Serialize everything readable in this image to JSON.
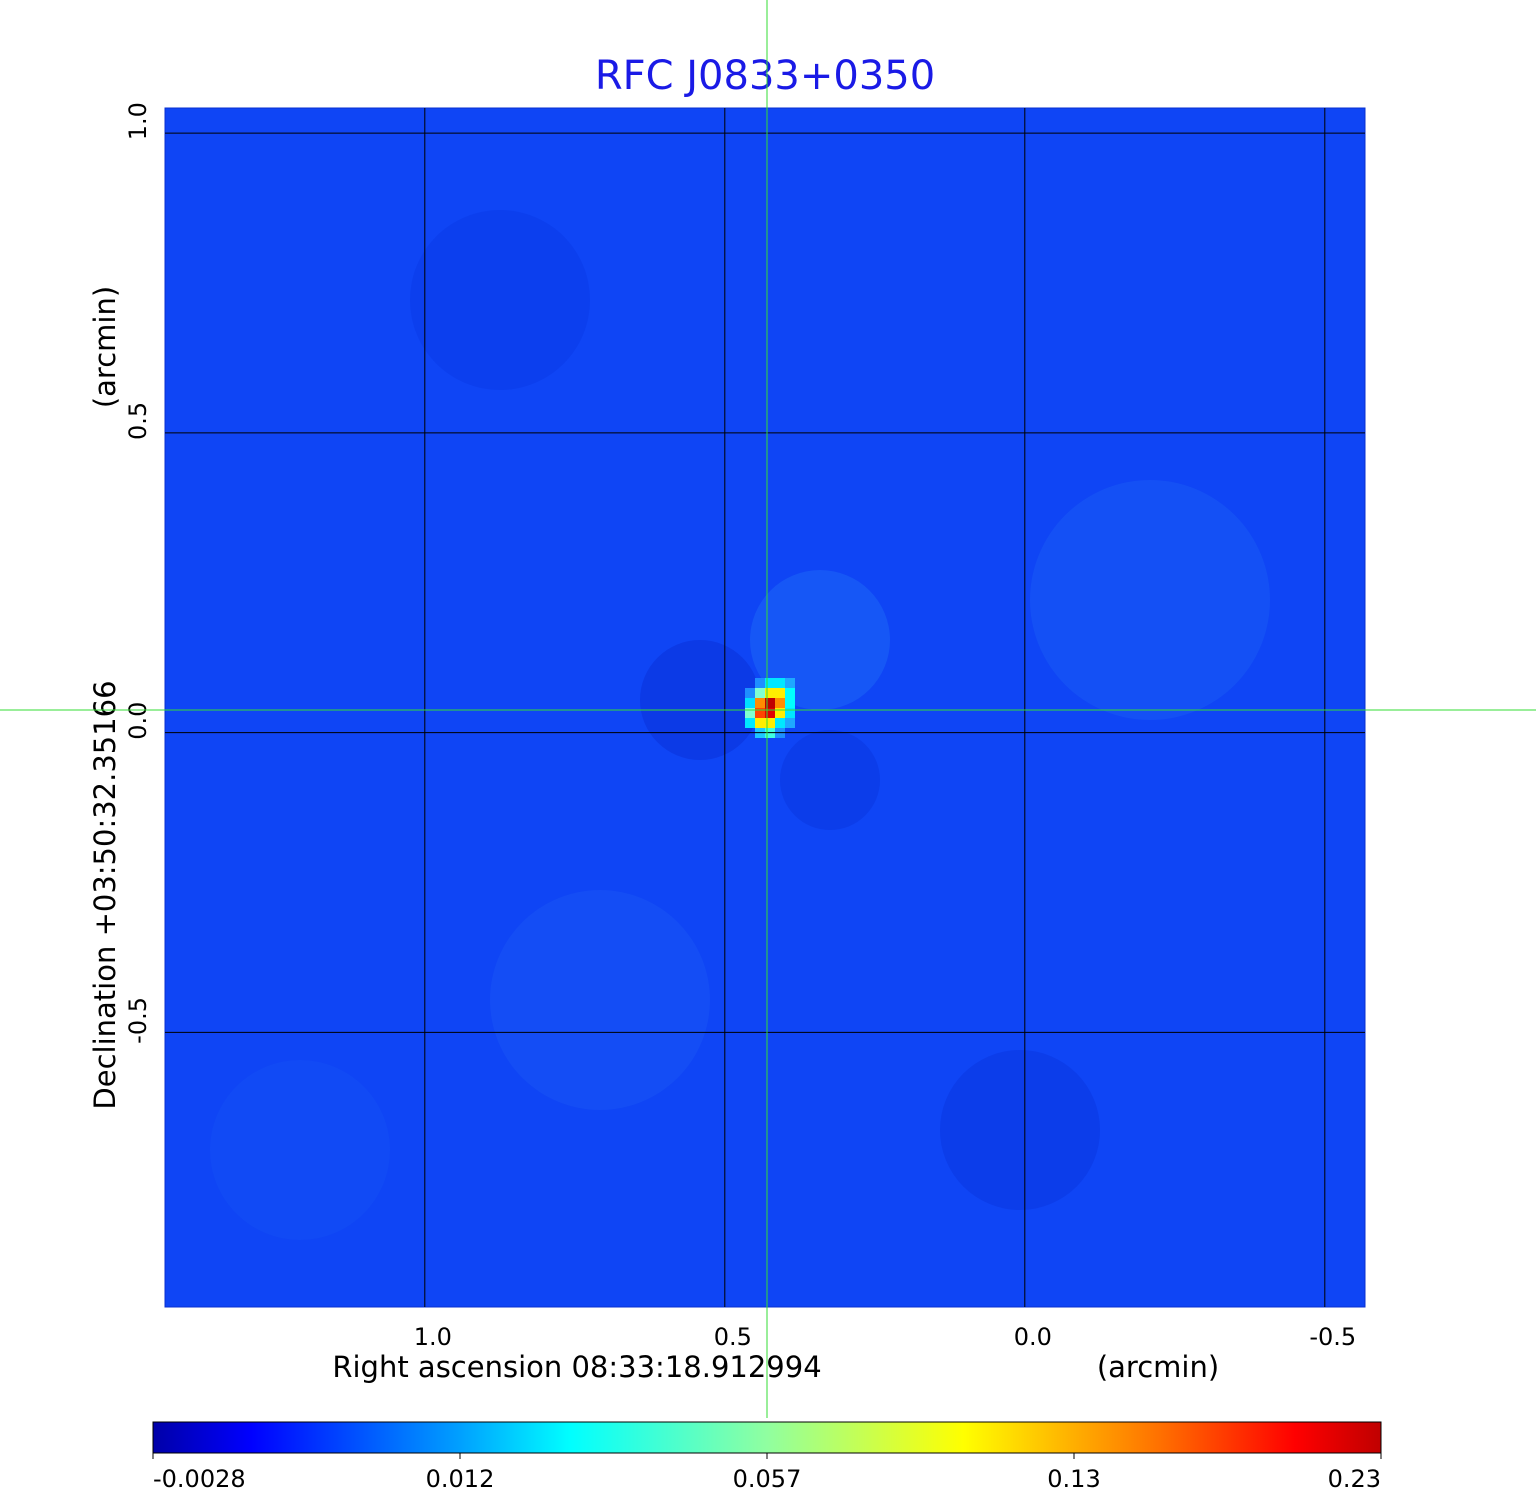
{
  "chart_data": {
    "type": "heatmap",
    "title": "RFC J0833+0350",
    "title_color": "#1a1ae6",
    "xlabel": "Right ascension  08:33:18.912994",
    "xlabel_unit": "(arcmin)",
    "ylabel": "Declination  +03:50:32.35166",
    "ylabel_unit": "(arcmin)",
    "x_ticks": [
      {
        "value": 1.0,
        "label": "1.0"
      },
      {
        "value": 0.5,
        "label": "0.5"
      },
      {
        "value": 0.0,
        "label": "0.0"
      },
      {
        "value": -0.5,
        "label": "-0.5"
      }
    ],
    "y_ticks": [
      {
        "value": 1.0,
        "label": "1.0"
      },
      {
        "value": 0.5,
        "label": "0.5"
      },
      {
        "value": 0.0,
        "label": "0.0"
      },
      {
        "value": -0.5,
        "label": "-0.5"
      }
    ],
    "xlim": [
      1.433,
      -0.567
    ],
    "ylim": [
      -0.958,
      1.042
    ],
    "grid": true,
    "crosshair": {
      "x": 0.428,
      "y": 0.038,
      "color": "#33dd33"
    },
    "colormap": "jet",
    "colorbar": {
      "ticks": [
        "-0.0028",
        "0.012",
        "0.057",
        "0.13",
        "0.23"
      ],
      "min": -0.0028,
      "max": 0.23,
      "placement": "bottom"
    },
    "source_peak": {
      "x": 0.428,
      "y": 0.038,
      "value": 0.23
    },
    "source_pixels": [
      {
        "dx": 1,
        "dy": -3,
        "c": "#1e8fff"
      },
      {
        "dx": 2,
        "dy": -3,
        "c": "#00e8ff"
      },
      {
        "dx": 3,
        "dy": -3,
        "c": "#00e8ff"
      },
      {
        "dx": 4,
        "dy": -3,
        "c": "#1ea8ff"
      },
      {
        "dx": 0,
        "dy": -2,
        "c": "#1e8fff"
      },
      {
        "dx": 1,
        "dy": -2,
        "c": "#80ffd0"
      },
      {
        "dx": 2,
        "dy": -2,
        "c": "#ffee00"
      },
      {
        "dx": 3,
        "dy": -2,
        "c": "#ffee00"
      },
      {
        "dx": 4,
        "dy": -2,
        "c": "#00ffff"
      },
      {
        "dx": 0,
        "dy": -1,
        "c": "#00e0ff"
      },
      {
        "dx": 1,
        "dy": -1,
        "c": "#ff8c00"
      },
      {
        "dx": 2,
        "dy": -1,
        "c": "#c00000"
      },
      {
        "dx": 3,
        "dy": -1,
        "c": "#ff8c00"
      },
      {
        "dx": 4,
        "dy": -1,
        "c": "#00ffff"
      },
      {
        "dx": 0,
        "dy": 0,
        "c": "#80ffd0"
      },
      {
        "dx": 1,
        "dy": 0,
        "c": "#ff4500"
      },
      {
        "dx": 2,
        "dy": 0,
        "c": "#e00000"
      },
      {
        "dx": 3,
        "dy": 0,
        "c": "#ffee00"
      },
      {
        "dx": 4,
        "dy": 0,
        "c": "#00e8ff"
      },
      {
        "dx": 0,
        "dy": 1,
        "c": "#00e8ff"
      },
      {
        "dx": 1,
        "dy": 1,
        "c": "#ffee00"
      },
      {
        "dx": 2,
        "dy": 1,
        "c": "#ffee00"
      },
      {
        "dx": 3,
        "dy": 1,
        "c": "#00e8ff"
      },
      {
        "dx": 4,
        "dy": 1,
        "c": "#1ea8ff"
      },
      {
        "dx": 1,
        "dy": 2,
        "c": "#1ec8ff"
      },
      {
        "dx": 2,
        "dy": 2,
        "c": "#40ffe0"
      },
      {
        "dx": 3,
        "dy": 2,
        "c": "#1e90ff"
      }
    ]
  }
}
